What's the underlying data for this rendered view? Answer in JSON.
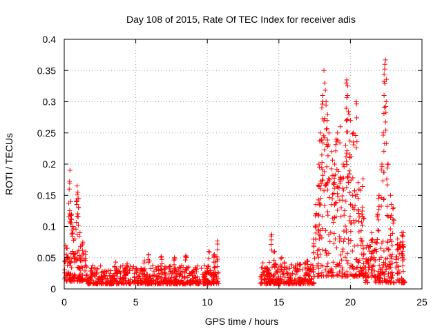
{
  "chart_data": {
    "type": "scatter",
    "title": "Day 108 of 2015, Rate Of TEC Index for receiver adis",
    "xlabel": "GPS time / hours",
    "ylabel": "ROTI / TECUs",
    "xlim": [
      0,
      25
    ],
    "ylim": [
      0,
      0.4
    ],
    "xticks": [
      0,
      5,
      10,
      15,
      20,
      25
    ],
    "xtick_labels": [
      "0",
      "5",
      "10",
      "15",
      "20",
      "25"
    ],
    "yticks": [
      0,
      0.05,
      0.1,
      0.15,
      0.2,
      0.25,
      0.3,
      0.35,
      0.4
    ],
    "ytick_labels": [
      "0",
      "0.05",
      "0.1",
      "0.15",
      "0.2",
      "0.25",
      "0.3",
      "0.35",
      "0.4"
    ],
    "grid": true,
    "marker": "+",
    "marker_color": "#ff0000",
    "series": [
      {
        "name": "ROTI",
        "segments": [
          {
            "x_start": 0.0,
            "x_end": 1.6,
            "base": 0.012,
            "spread": 0.05
          },
          {
            "x_start": 1.6,
            "x_end": 10.8,
            "base": 0.008,
            "spread": 0.03
          },
          {
            "x_start": 13.7,
            "x_end": 17.5,
            "base": 0.008,
            "spread": 0.035
          },
          {
            "x_start": 17.5,
            "x_end": 21.0,
            "base": 0.02,
            "spread": 0.16
          },
          {
            "x_start": 21.0,
            "x_end": 23.8,
            "base": 0.01,
            "spread": 0.07
          }
        ],
        "peaks": [
          {
            "x": 0.1,
            "y": 0.07
          },
          {
            "x": 0.2,
            "y": 0.065
          },
          {
            "x": 0.35,
            "y": 0.16
          },
          {
            "x": 0.4,
            "y": 0.19
          },
          {
            "x": 0.45,
            "y": 0.14
          },
          {
            "x": 0.5,
            "y": 0.12
          },
          {
            "x": 0.6,
            "y": 0.1
          },
          {
            "x": 0.75,
            "y": 0.08
          },
          {
            "x": 0.85,
            "y": 0.14
          },
          {
            "x": 0.9,
            "y": 0.165
          },
          {
            "x": 0.95,
            "y": 0.155
          },
          {
            "x": 1.0,
            "y": 0.13
          },
          {
            "x": 1.1,
            "y": 0.09
          },
          {
            "x": 1.3,
            "y": 0.075
          },
          {
            "x": 1.5,
            "y": 0.06
          },
          {
            "x": 3.6,
            "y": 0.043
          },
          {
            "x": 4.4,
            "y": 0.04
          },
          {
            "x": 5.6,
            "y": 0.045
          },
          {
            "x": 5.9,
            "y": 0.055
          },
          {
            "x": 6.8,
            "y": 0.052
          },
          {
            "x": 7.7,
            "y": 0.05
          },
          {
            "x": 8.5,
            "y": 0.053
          },
          {
            "x": 10.1,
            "y": 0.06
          },
          {
            "x": 10.5,
            "y": 0.055
          },
          {
            "x": 10.7,
            "y": 0.077
          },
          {
            "x": 14.5,
            "y": 0.087
          },
          {
            "x": 14.7,
            "y": 0.06
          },
          {
            "x": 15.2,
            "y": 0.05
          },
          {
            "x": 16.3,
            "y": 0.04
          },
          {
            "x": 17.0,
            "y": 0.045
          },
          {
            "x": 17.4,
            "y": 0.08
          },
          {
            "x": 17.6,
            "y": 0.12
          },
          {
            "x": 17.8,
            "y": 0.2
          },
          {
            "x": 17.9,
            "y": 0.25
          },
          {
            "x": 18.0,
            "y": 0.29
          },
          {
            "x": 18.05,
            "y": 0.31
          },
          {
            "x": 18.15,
            "y": 0.35
          },
          {
            "x": 18.2,
            "y": 0.33
          },
          {
            "x": 18.3,
            "y": 0.3
          },
          {
            "x": 18.4,
            "y": 0.28
          },
          {
            "x": 18.5,
            "y": 0.25
          },
          {
            "x": 18.7,
            "y": 0.22
          },
          {
            "x": 18.9,
            "y": 0.2
          },
          {
            "x": 19.0,
            "y": 0.24
          },
          {
            "x": 19.1,
            "y": 0.25
          },
          {
            "x": 19.3,
            "y": 0.26
          },
          {
            "x": 19.5,
            "y": 0.2
          },
          {
            "x": 19.7,
            "y": 0.33
          },
          {
            "x": 19.75,
            "y": 0.335
          },
          {
            "x": 19.8,
            "y": 0.31
          },
          {
            "x": 19.9,
            "y": 0.28
          },
          {
            "x": 20.0,
            "y": 0.27
          },
          {
            "x": 20.2,
            "y": 0.25
          },
          {
            "x": 20.4,
            "y": 0.3
          },
          {
            "x": 20.6,
            "y": 0.16
          },
          {
            "x": 20.8,
            "y": 0.12
          },
          {
            "x": 21.2,
            "y": 0.07
          },
          {
            "x": 21.5,
            "y": 0.09
          },
          {
            "x": 21.9,
            "y": 0.12
          },
          {
            "x": 22.0,
            "y": 0.15
          },
          {
            "x": 22.2,
            "y": 0.2
          },
          {
            "x": 22.3,
            "y": 0.25
          },
          {
            "x": 22.35,
            "y": 0.31
          },
          {
            "x": 22.4,
            "y": 0.36
          },
          {
            "x": 22.45,
            "y": 0.367
          },
          {
            "x": 22.5,
            "y": 0.3
          },
          {
            "x": 22.6,
            "y": 0.2
          },
          {
            "x": 22.8,
            "y": 0.15
          },
          {
            "x": 23.0,
            "y": 0.13
          },
          {
            "x": 23.3,
            "y": 0.08
          },
          {
            "x": 23.6,
            "y": 0.09
          },
          {
            "x": 23.7,
            "y": 0.09
          }
        ]
      }
    ]
  }
}
